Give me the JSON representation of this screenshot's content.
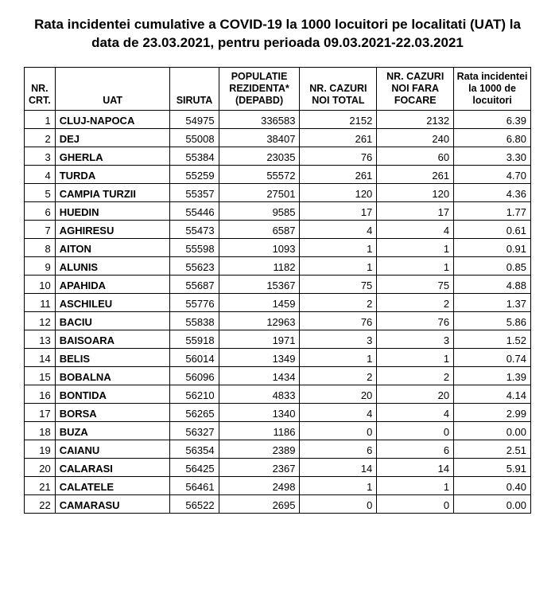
{
  "title": "Rata incidentei cumulative a COVID-19 la 1000 locuitori pe localitati (UAT) la data de 23.03.2021, pentru perioada 09.03.2021-22.03.2021",
  "table": {
    "columns": [
      {
        "key": "nr",
        "label": "NR. CRT.",
        "class": "col-nr",
        "cell_class": "num"
      },
      {
        "key": "uat",
        "label": "UAT",
        "class": "col-uat",
        "cell_class": "uat"
      },
      {
        "key": "siruta",
        "label": "SIRUTA",
        "class": "col-siruta",
        "cell_class": "num"
      },
      {
        "key": "pop",
        "label": "POPULATIE REZIDENTA* (DEPABD)",
        "class": "col-pop",
        "cell_class": "num"
      },
      {
        "key": "total",
        "label": "NR. CAZURI NOI TOTAL",
        "class": "col-total",
        "cell_class": "num"
      },
      {
        "key": "noi",
        "label": "NR. CAZURI NOI FARA FOCARE",
        "class": "col-noi",
        "cell_class": "num"
      },
      {
        "key": "rata",
        "label": "Rata incidentei la 1000 de locuitori",
        "class": "col-rata",
        "cell_class": "num"
      }
    ],
    "rows": [
      {
        "nr": "1",
        "uat": "CLUJ-NAPOCA",
        "siruta": "54975",
        "pop": "336583",
        "total": "2152",
        "noi": "2132",
        "rata": "6.39"
      },
      {
        "nr": "2",
        "uat": "DEJ",
        "siruta": "55008",
        "pop": "38407",
        "total": "261",
        "noi": "240",
        "rata": "6.80"
      },
      {
        "nr": "3",
        "uat": "GHERLA",
        "siruta": "55384",
        "pop": "23035",
        "total": "76",
        "noi": "60",
        "rata": "3.30"
      },
      {
        "nr": "4",
        "uat": "TURDA",
        "siruta": "55259",
        "pop": "55572",
        "total": "261",
        "noi": "261",
        "rata": "4.70"
      },
      {
        "nr": "5",
        "uat": "CAMPIA TURZII",
        "siruta": "55357",
        "pop": "27501",
        "total": "120",
        "noi": "120",
        "rata": "4.36"
      },
      {
        "nr": "6",
        "uat": "HUEDIN",
        "siruta": "55446",
        "pop": "9585",
        "total": "17",
        "noi": "17",
        "rata": "1.77"
      },
      {
        "nr": "7",
        "uat": "AGHIRESU",
        "siruta": "55473",
        "pop": "6587",
        "total": "4",
        "noi": "4",
        "rata": "0.61"
      },
      {
        "nr": "8",
        "uat": "AITON",
        "siruta": "55598",
        "pop": "1093",
        "total": "1",
        "noi": "1",
        "rata": "0.91"
      },
      {
        "nr": "9",
        "uat": "ALUNIS",
        "siruta": "55623",
        "pop": "1182",
        "total": "1",
        "noi": "1",
        "rata": "0.85"
      },
      {
        "nr": "10",
        "uat": "APAHIDA",
        "siruta": "55687",
        "pop": "15367",
        "total": "75",
        "noi": "75",
        "rata": "4.88"
      },
      {
        "nr": "11",
        "uat": "ASCHILEU",
        "siruta": "55776",
        "pop": "1459",
        "total": "2",
        "noi": "2",
        "rata": "1.37"
      },
      {
        "nr": "12",
        "uat": "BACIU",
        "siruta": "55838",
        "pop": "12963",
        "total": "76",
        "noi": "76",
        "rata": "5.86"
      },
      {
        "nr": "13",
        "uat": "BAISOARA",
        "siruta": "55918",
        "pop": "1971",
        "total": "3",
        "noi": "3",
        "rata": "1.52"
      },
      {
        "nr": "14",
        "uat": "BELIS",
        "siruta": "56014",
        "pop": "1349",
        "total": "1",
        "noi": "1",
        "rata": "0.74"
      },
      {
        "nr": "15",
        "uat": "BOBALNA",
        "siruta": "56096",
        "pop": "1434",
        "total": "2",
        "noi": "2",
        "rata": "1.39"
      },
      {
        "nr": "16",
        "uat": "BONTIDA",
        "siruta": "56210",
        "pop": "4833",
        "total": "20",
        "noi": "20",
        "rata": "4.14"
      },
      {
        "nr": "17",
        "uat": "BORSA",
        "siruta": "56265",
        "pop": "1340",
        "total": "4",
        "noi": "4",
        "rata": "2.99"
      },
      {
        "nr": "18",
        "uat": "BUZA",
        "siruta": "56327",
        "pop": "1186",
        "total": "0",
        "noi": "0",
        "rata": "0.00"
      },
      {
        "nr": "19",
        "uat": "CAIANU",
        "siruta": "56354",
        "pop": "2389",
        "total": "6",
        "noi": "6",
        "rata": "2.51"
      },
      {
        "nr": "20",
        "uat": "CALARASI",
        "siruta": "56425",
        "pop": "2367",
        "total": "14",
        "noi": "14",
        "rata": "5.91"
      },
      {
        "nr": "21",
        "uat": "CALATELE",
        "siruta": "56461",
        "pop": "2498",
        "total": "1",
        "noi": "1",
        "rata": "0.40"
      },
      {
        "nr": "22",
        "uat": "CAMARASU",
        "siruta": "56522",
        "pop": "2695",
        "total": "0",
        "noi": "0",
        "rata": "0.00"
      }
    ]
  }
}
